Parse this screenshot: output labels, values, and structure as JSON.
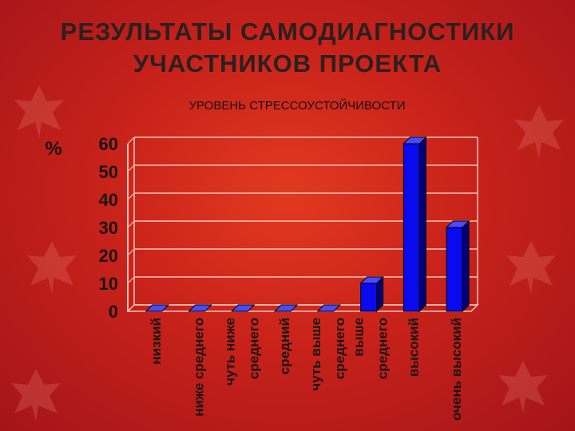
{
  "slide": {
    "title_line1": "РЕЗУЛЬТАТЫ САМОДИАГНОСТИКИ",
    "title_line2": "УЧАСТНИКОВ ПРОЕКТА"
  },
  "colors": {
    "bar": "#0a0aee",
    "bar_side": "#00007a",
    "bar_top": "#4a4aff",
    "grid": "#f0c4bc",
    "text": "#1c1414"
  },
  "chart_data": {
    "type": "bar",
    "title": "УРОВЕНЬ СТРЕССОУСТОЙЧИВОСТИ",
    "ylabel": "%",
    "xlabel": "",
    "ylim": [
      0,
      60
    ],
    "yticks": [
      0,
      10,
      20,
      30,
      40,
      50,
      60
    ],
    "grid": true,
    "categories": [
      {
        "lines": [
          "низкий"
        ]
      },
      {
        "lines": [
          "ниже среднего"
        ]
      },
      {
        "lines": [
          "чуть ниже",
          "среднего"
        ]
      },
      {
        "lines": [
          "средний"
        ]
      },
      {
        "lines": [
          "чуть выше",
          "среднего"
        ]
      },
      {
        "lines": [
          "выше",
          "среднего"
        ]
      },
      {
        "lines": [
          "высокий"
        ]
      },
      {
        "lines": [
          "очень высокий"
        ]
      }
    ],
    "values": [
      0,
      0,
      0,
      0,
      0,
      10,
      60,
      30
    ]
  }
}
